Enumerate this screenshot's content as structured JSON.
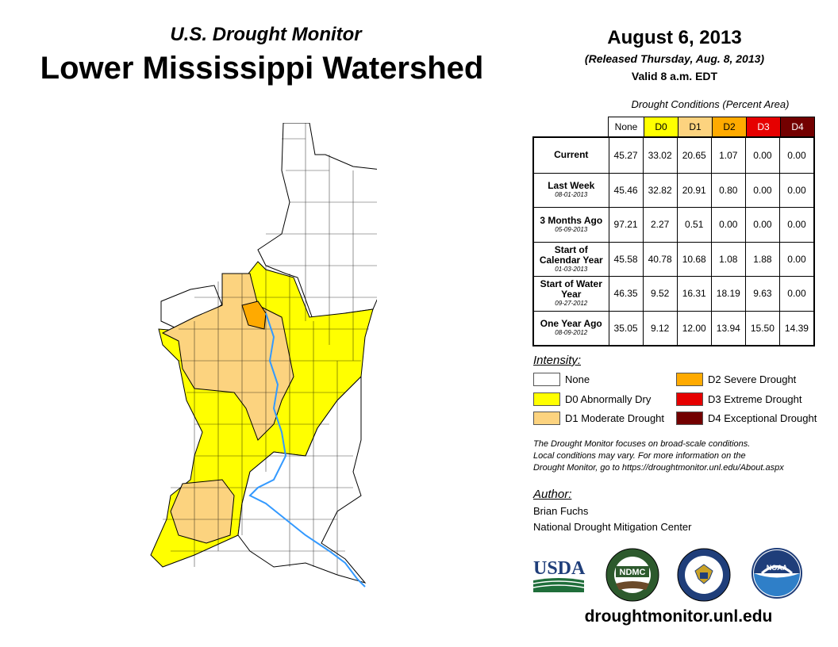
{
  "header": {
    "subtitle": "U.S. Drought Monitor",
    "title": "Lower Mississippi Watershed",
    "date": "August 6, 2013",
    "released": "(Released Thursday, Aug. 8, 2013)",
    "valid": "Valid 8 a.m. EDT"
  },
  "table": {
    "caption": "Drought Conditions (Percent Area)",
    "columns": [
      "None",
      "D0",
      "D1",
      "D2",
      "D3",
      "D4"
    ],
    "column_colors": [
      "#ffffff",
      "#ffff00",
      "#fcd37f",
      "#ffaa00",
      "#e60000",
      "#730000"
    ],
    "rows": [
      {
        "label": "Current",
        "date": "",
        "values": [
          "45.27",
          "33.02",
          "20.65",
          "1.07",
          "0.00",
          "0.00"
        ]
      },
      {
        "label": "Last Week",
        "date": "08-01-2013",
        "values": [
          "45.46",
          "32.82",
          "20.91",
          "0.80",
          "0.00",
          "0.00"
        ]
      },
      {
        "label": "3 Months Ago",
        "date": "05-09-2013",
        "values": [
          "97.21",
          "2.27",
          "0.51",
          "0.00",
          "0.00",
          "0.00"
        ]
      },
      {
        "label": "Start of Calendar Year",
        "date": "01-03-2013",
        "values": [
          "45.58",
          "40.78",
          "10.68",
          "1.08",
          "1.88",
          "0.00"
        ]
      },
      {
        "label": "Start of Water Year",
        "date": "09-27-2012",
        "values": [
          "46.35",
          "9.52",
          "16.31",
          "18.19",
          "9.63",
          "0.00"
        ]
      },
      {
        "label": "One Year Ago",
        "date": "08-09-2012",
        "values": [
          "35.05",
          "9.12",
          "12.00",
          "13.94",
          "15.50",
          "14.39"
        ]
      }
    ]
  },
  "legend": {
    "title": "Intensity:",
    "items": [
      {
        "label": "None",
        "color": "#ffffff"
      },
      {
        "label": "D0 Abnormally Dry",
        "color": "#ffff00"
      },
      {
        "label": "D1 Moderate Drought",
        "color": "#fcd37f"
      },
      {
        "label": "D2 Severe Drought",
        "color": "#ffaa00"
      },
      {
        "label": "D3 Extreme Drought",
        "color": "#e60000"
      },
      {
        "label": "D4 Exceptional Drought",
        "color": "#730000"
      }
    ]
  },
  "note": {
    "line1": "The Drought Monitor focuses on broad-scale conditions.",
    "line2": "Local conditions may vary. For more information on the",
    "line3": "Drought Monitor, go to https://droughtmonitor.unl.edu/About.aspx"
  },
  "author": {
    "title": "Author:",
    "name": "Brian Fuchs",
    "org": "National Drought Mitigation Center"
  },
  "logos": {
    "usda": "USDA",
    "ndmc": "NDMC",
    "noaa": "NOAA"
  },
  "footer": {
    "url": "droughtmonitor.unl.edu"
  },
  "map": {
    "river_color": "#3399ff",
    "d0_color": "#ffff00",
    "d1_color": "#fcd37f",
    "d2_color": "#ffaa00"
  }
}
